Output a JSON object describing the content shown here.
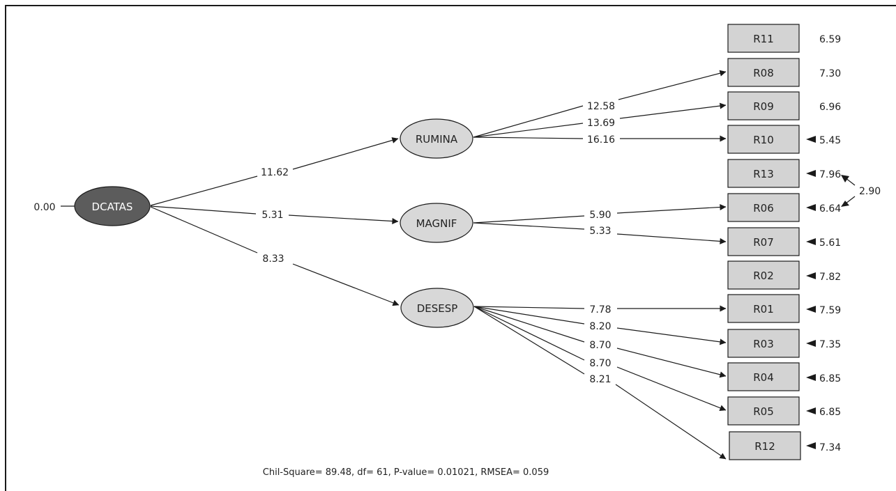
{
  "colors": {
    "primary_latent": "#5c5c5c",
    "latent": "#d8d8d8",
    "observed": "#d3d3d3",
    "line": "#1a1a1a"
  },
  "latents": {
    "dcatas": {
      "label": "DCATAS",
      "variance": "0.00"
    },
    "rumina": {
      "label": "RUMINA"
    },
    "magnif": {
      "label": "MAGNIF"
    },
    "desesp": {
      "label": "DESESP"
    }
  },
  "second_order_loadings": {
    "rumina": "11.62",
    "magnif": "5.31",
    "desesp": "8.33"
  },
  "observed": [
    {
      "id": "R11",
      "label": "R11",
      "error": "6.59"
    },
    {
      "id": "R08",
      "label": "R08",
      "error": "7.30"
    },
    {
      "id": "R09",
      "label": "R09",
      "error": "6.96"
    },
    {
      "id": "R10",
      "label": "R10",
      "error": "5.45"
    },
    {
      "id": "R13",
      "label": "R13",
      "error": "7.96"
    },
    {
      "id": "R06",
      "label": "R06",
      "error": "6.64"
    },
    {
      "id": "R07",
      "label": "R07",
      "error": "5.61"
    },
    {
      "id": "R02",
      "label": "R02",
      "error": "7.82"
    },
    {
      "id": "R01",
      "label": "R01",
      "error": "7.59"
    },
    {
      "id": "R03",
      "label": "R03",
      "error": "7.35"
    },
    {
      "id": "R04",
      "label": "R04",
      "error": "6.85"
    },
    {
      "id": "R05",
      "label": "R05",
      "error": "6.85"
    },
    {
      "id": "R12",
      "label": "R12",
      "error": "7.34"
    }
  ],
  "first_order_loadings": {
    "rumina_r08": "12.58",
    "rumina_r09": "13.69",
    "rumina_r10": "16.16",
    "magnif_r06": "5.90",
    "magnif_r07": "5.33",
    "desesp_r01": "7.78",
    "desesp_r03": "8.20",
    "desesp_r04": "8.70",
    "desesp_r05": "8.70",
    "desesp_r12": "8.21"
  },
  "error_covariance": {
    "between": [
      "R13",
      "R06"
    ],
    "value": "2.90"
  },
  "fit_statistics": "Chil-Square= 89.48,  df= 61,  P-value= 0.01021,  RMSEA= 0.059"
}
